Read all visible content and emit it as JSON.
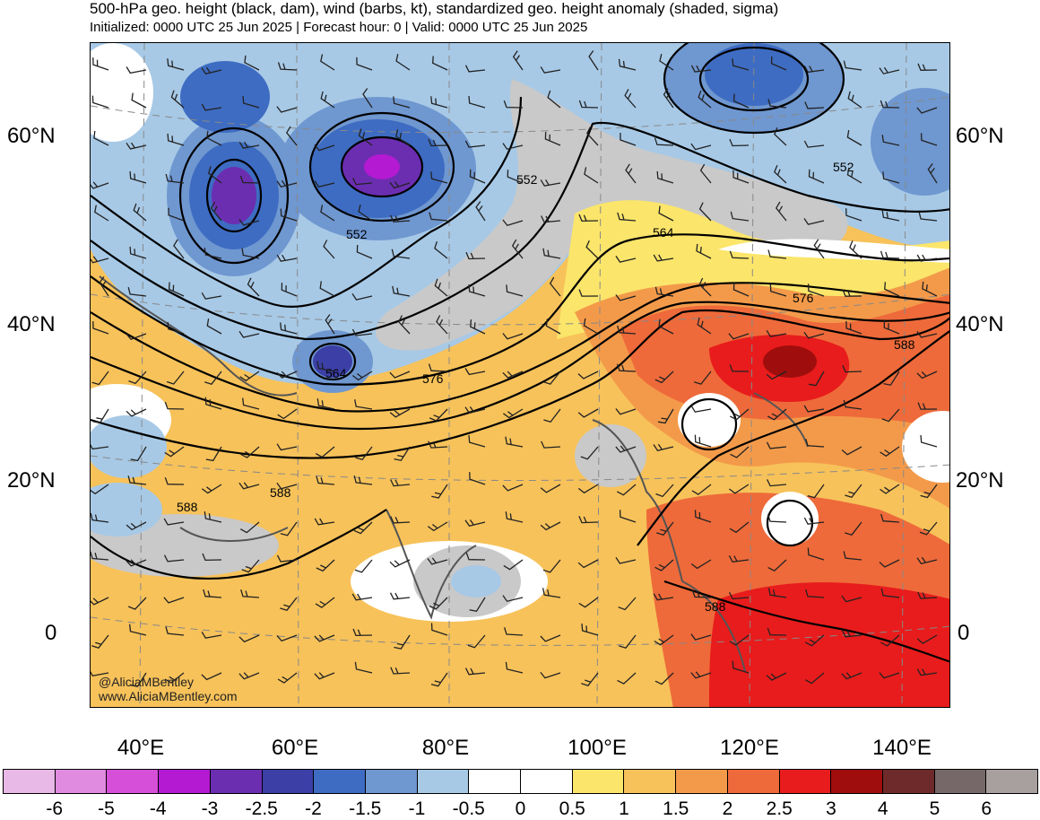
{
  "header": {
    "title": "500-hPa geo. height (black, dam), wind (barbs, kt), standardized geo. height anomaly (shaded, sigma)",
    "subtitle": "Initialized: 0000 UTC 25 Jun 2025 | Forecast hour: 0 | Valid: 0000 UTC 25 Jun 2025"
  },
  "map": {
    "lat_labels": [
      "60°N",
      "40°N",
      "20°N",
      "0"
    ],
    "lon_labels": [
      "40°E",
      "60°E",
      "80°E",
      "100°E",
      "120°E",
      "140°E"
    ],
    "contour_labels": [
      "552",
      "552",
      "552",
      "564",
      "564",
      "576",
      "576",
      "588",
      "588",
      "588",
      "588"
    ],
    "credit_handle": "@AliciaMBentley",
    "credit_url": "www.AliciaMBentley.com"
  },
  "colorbar": {
    "ticks": [
      "-6",
      "-5",
      "-4",
      "-3",
      "-2.5",
      "-2",
      "-1.5",
      "-1",
      "-0.5",
      "0",
      "0.5",
      "1",
      "1.5",
      "2",
      "2.5",
      "3",
      "4",
      "5",
      "6"
    ],
    "colors": [
      "#e8b8e6",
      "#e08be0",
      "#d54fd8",
      "#b31ad1",
      "#6b2eb1",
      "#3b3fa6",
      "#3e6cc2",
      "#6f97d0",
      "#a7c9e6",
      "#ffffff",
      "#ffffff",
      "#fbe56a",
      "#f7c25a",
      "#f39a4a",
      "#ee6a3a",
      "#e81c1c",
      "#a00d0d",
      "#6e2a2a",
      "#766868",
      "#a89f9f"
    ]
  }
}
